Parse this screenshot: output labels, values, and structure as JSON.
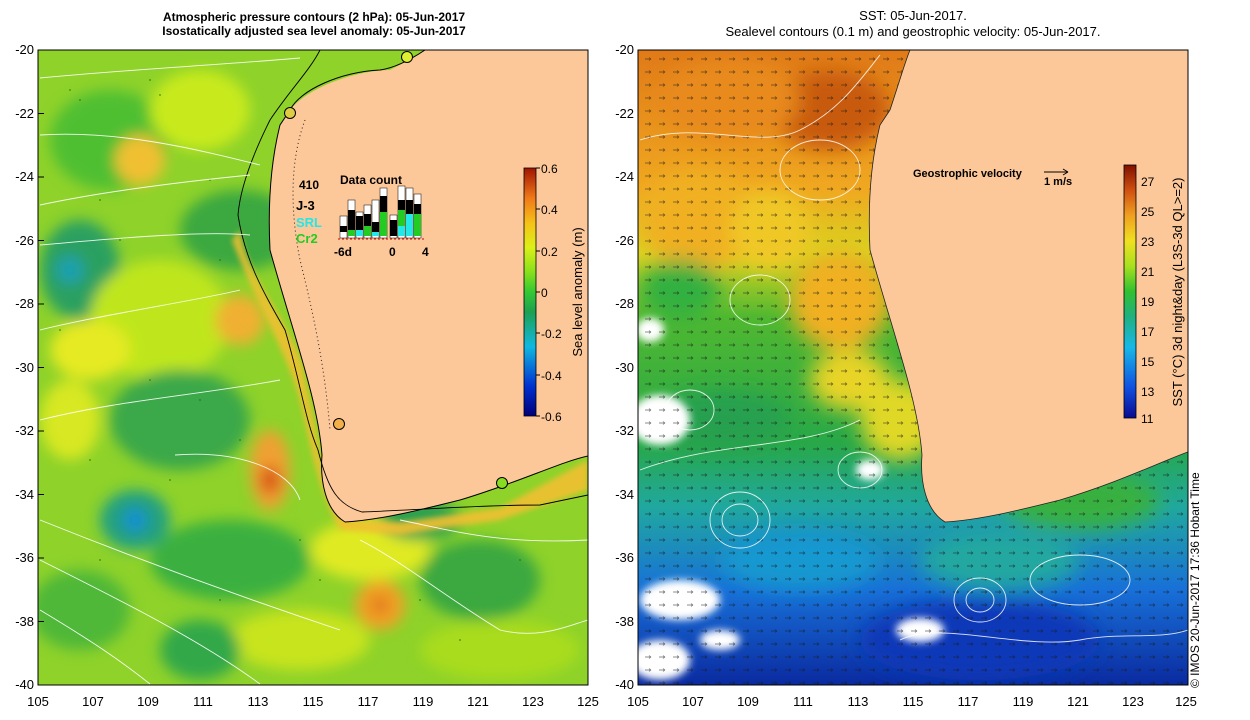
{
  "left_panel": {
    "title_line1": "Atmospheric pressure contours (2 hPa): 05-Jun-2017",
    "title_line2": "Isostatically adjusted sea level anomaly: 05-Jun-2017",
    "y_ticks": [
      "-20",
      "-22",
      "-24",
      "-26",
      "-28",
      "-30",
      "-32",
      "-34",
      "-36",
      "-38",
      "-40"
    ],
    "x_ticks": [
      "105",
      "107",
      "109",
      "111",
      "113",
      "115",
      "117",
      "119",
      "121",
      "123",
      "125"
    ],
    "colorbar": {
      "label": "Sea level anomaly (m)",
      "ticks": [
        "0.6",
        "0.4",
        "0.2",
        "0",
        "-0.2",
        "-0.4",
        "-0.6"
      ],
      "range": [
        -0.6,
        0.6
      ]
    },
    "data_count": {
      "title": "Data count",
      "max_label": "410",
      "missions": [
        {
          "name": "J-3",
          "color": "#000000"
        },
        {
          "name": "SRL",
          "color": "#22e8e8"
        },
        {
          "name": "Cr2",
          "color": "#22cc22"
        }
      ],
      "x_labels": [
        "-6d",
        "0",
        "4"
      ]
    },
    "tide_gauges": [
      {
        "lon": 118.5,
        "lat": -20.3,
        "color": "#ddee33"
      },
      {
        "lon": 114.2,
        "lat": -22.0,
        "color": "#ddcc44"
      },
      {
        "lon": 115.9,
        "lat": -31.8,
        "color": "#f3b04a"
      },
      {
        "lon": 121.9,
        "lat": -33.6,
        "color": "#88dd22"
      }
    ]
  },
  "right_panel": {
    "title_line1": "SST: 05-Jun-2017.",
    "title_line2": "Sealevel contours (0.1 m) and geostrophic velocity: 05-Jun-2017.",
    "y_ticks": [
      "-20",
      "-22",
      "-24",
      "-26",
      "-28",
      "-30",
      "-32",
      "-34",
      "-36",
      "-38",
      "-40"
    ],
    "x_ticks": [
      "105",
      "107",
      "109",
      "111",
      "113",
      "115",
      "117",
      "119",
      "121",
      "123",
      "125"
    ],
    "velocity_legend": {
      "label": "Geostrophic velocity",
      "scale": "1 m/s"
    },
    "colorbar": {
      "label": "SST (°C) 3d night&day (L3S-3d QL>=2)",
      "ticks": [
        "27",
        "25",
        "23",
        "21",
        "19",
        "17",
        "15",
        "13",
        "11"
      ],
      "range": [
        11,
        28
      ]
    }
  },
  "footer": {
    "copyright": "© IMOS 20-Jun-2017 17:36 Hobart Time"
  }
}
